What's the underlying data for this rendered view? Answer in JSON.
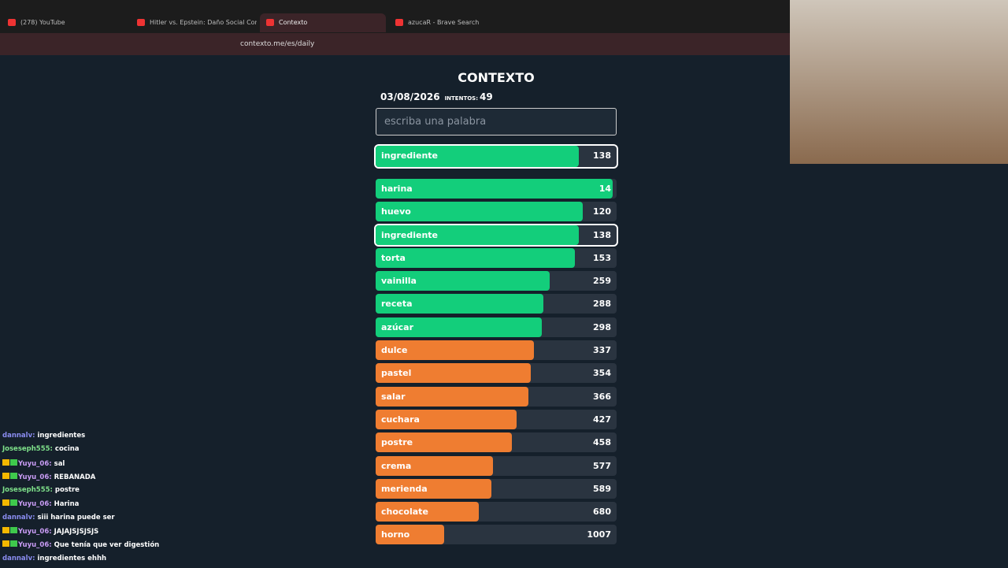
{
  "browser": {
    "tabs": [
      "(278) YouTube",
      "Hitler vs. Epstein: Daño Social Comp",
      "Contexto",
      "azucaR - Brave Search"
    ],
    "active_tab": 2,
    "url": "contexto.me/es/daily"
  },
  "game": {
    "title": "CONTEXTO",
    "date": "03/08/2026",
    "attempts_label": "INTENTOS:",
    "attempts": 49,
    "placeholder": "escriba una palabra",
    "last_guess": {
      "word": "ingrediente",
      "rank": 138
    },
    "guesses": [
      {
        "word": "harina",
        "rank": 14
      },
      {
        "word": "huevo",
        "rank": 120
      },
      {
        "word": "ingrediente",
        "rank": 138
      },
      {
        "word": "torta",
        "rank": 153
      },
      {
        "word": "vainilla",
        "rank": 259
      },
      {
        "word": "receta",
        "rank": 288
      },
      {
        "word": "azúcar",
        "rank": 298
      },
      {
        "word": "dulce",
        "rank": 337
      },
      {
        "word": "pastel",
        "rank": 354
      },
      {
        "word": "salar",
        "rank": 366
      },
      {
        "word": "cuchara",
        "rank": 427
      },
      {
        "word": "postre",
        "rank": 458
      },
      {
        "word": "crema",
        "rank": 577
      },
      {
        "word": "merienda",
        "rank": 589
      },
      {
        "word": "chocolate",
        "rank": 680
      },
      {
        "word": "horno",
        "rank": 1007
      }
    ]
  },
  "chat": [
    {
      "user": "dannalv:",
      "text": "ingredientes",
      "color": "#8a8cf0",
      "badged": false
    },
    {
      "user": "Joseseph555:",
      "text": "cocina",
      "color": "#7ee08a",
      "badged": false
    },
    {
      "user": "Yuyu_06:",
      "text": "sal",
      "color": "#c99cf5",
      "badged": true
    },
    {
      "user": "Yuyu_06:",
      "text": "REBANADA",
      "color": "#c99cf5",
      "badged": true
    },
    {
      "user": "Joseseph555:",
      "text": "postre",
      "color": "#7ee08a",
      "badged": false
    },
    {
      "user": "Yuyu_06:",
      "text": "Harina",
      "color": "#c99cf5",
      "badged": true
    },
    {
      "user": "dannalv:",
      "text": "siii harina puede ser",
      "color": "#8a8cf0",
      "badged": false
    },
    {
      "user": "Yuyu_06:",
      "text": "JAJAJSJSJSJS",
      "color": "#c99cf5",
      "badged": true
    },
    {
      "user": "Yuyu_06:",
      "text": "Que tenía que ver digestión",
      "color": "#c99cf5",
      "badged": true
    },
    {
      "user": "dannalv:",
      "text": "ingredientes ehhh",
      "color": "#8a8cf0",
      "badged": false
    }
  ]
}
